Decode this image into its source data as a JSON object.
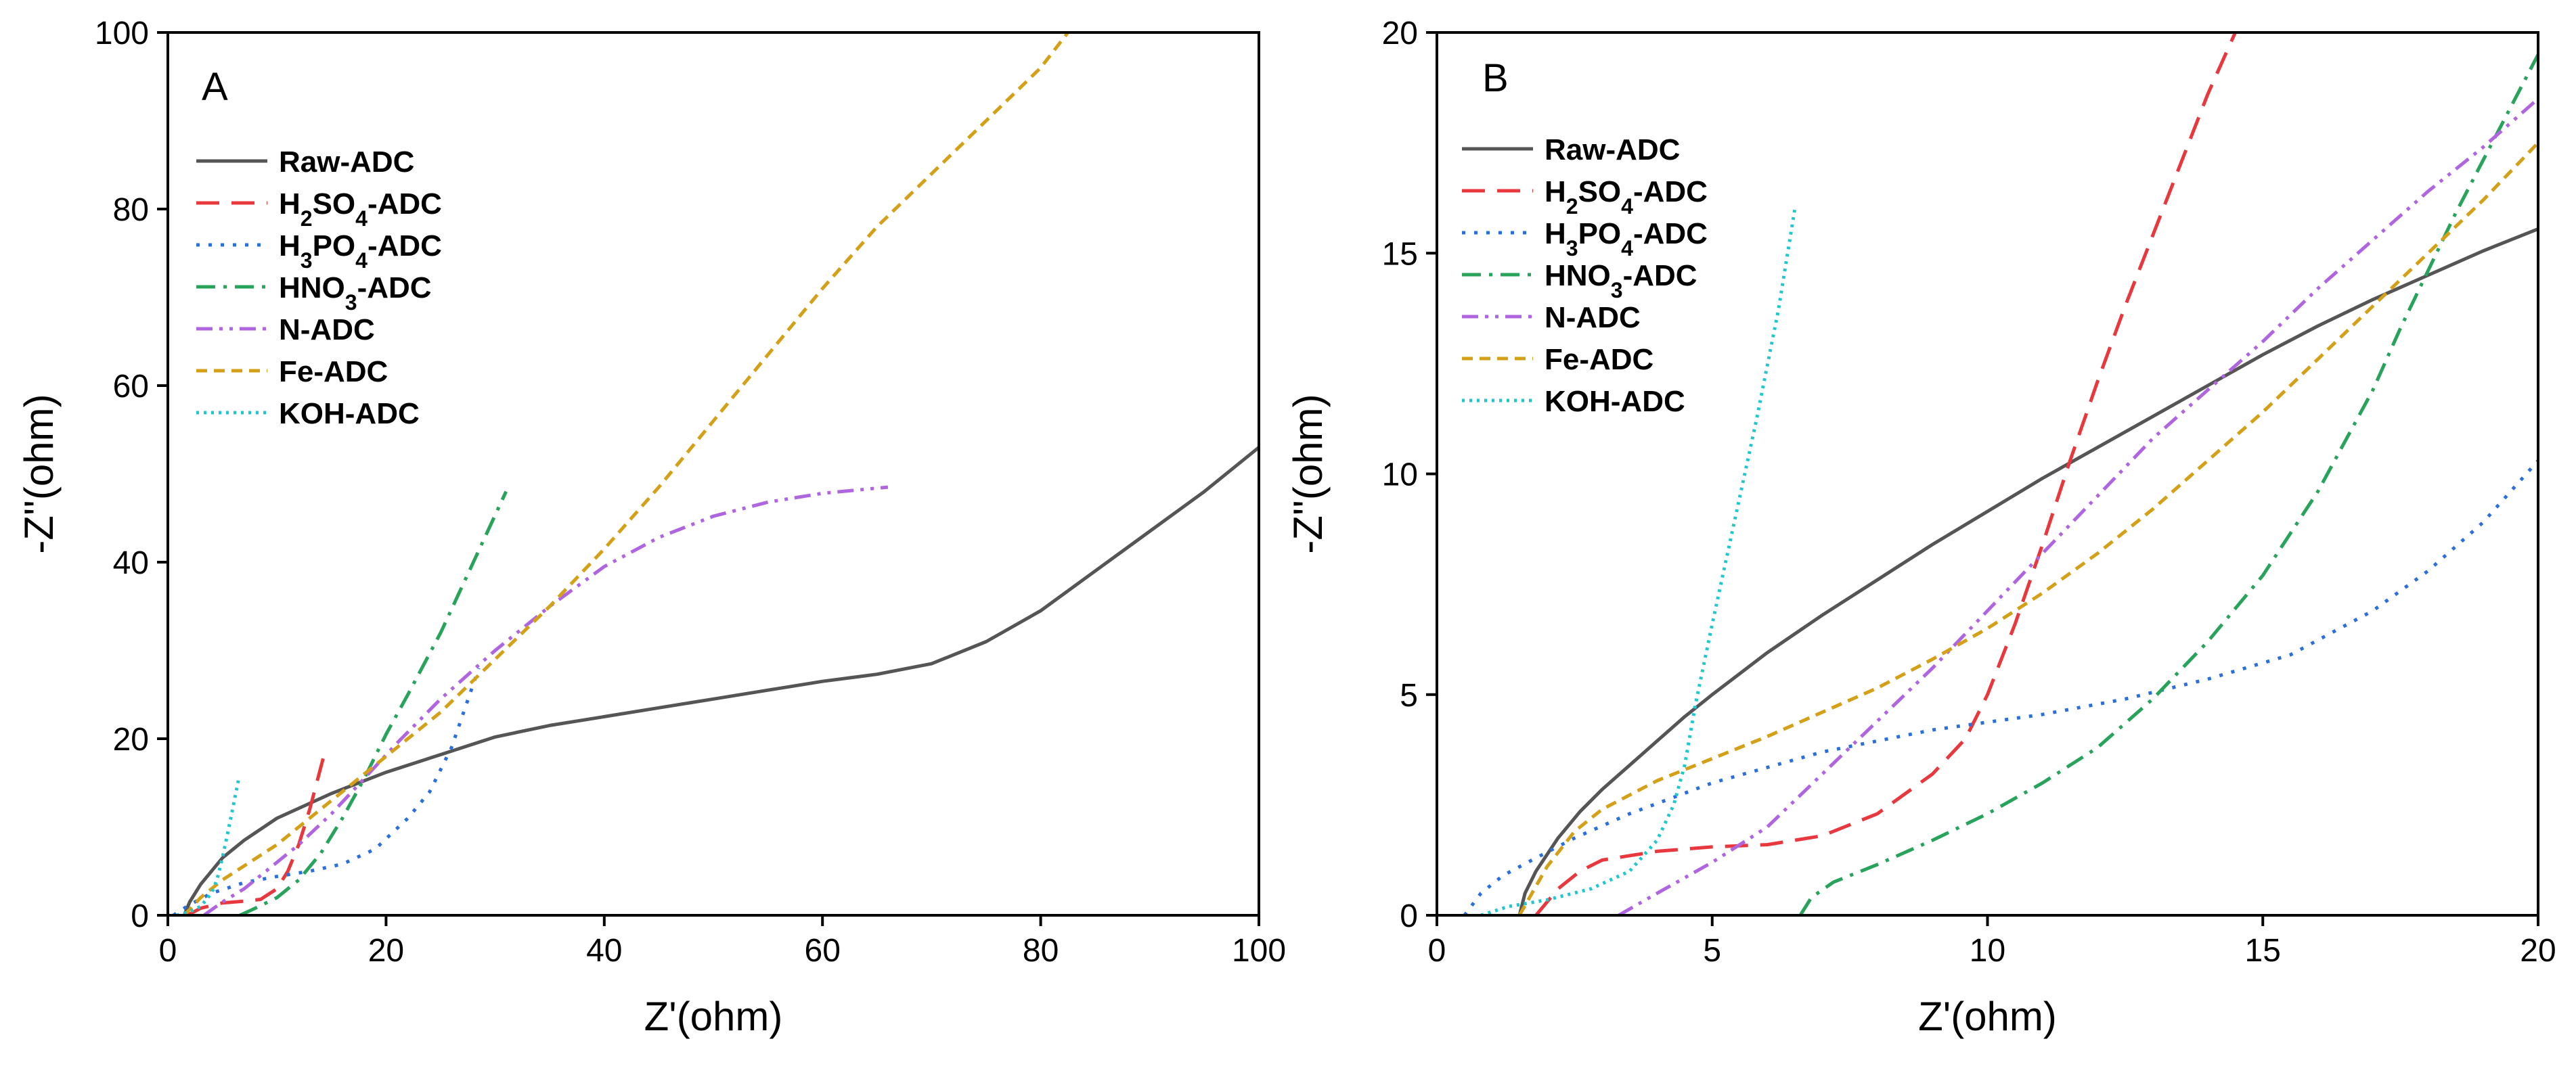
{
  "chart_data": [
    {
      "panel": "A",
      "type": "line",
      "xlabel": "Z'(ohm)",
      "ylabel": "-Z''(ohm)",
      "xlim": [
        0,
        100
      ],
      "ylim": [
        0,
        100
      ],
      "xticks": [
        0,
        20,
        40,
        60,
        80,
        100
      ],
      "yticks": [
        0,
        20,
        40,
        60,
        80,
        100
      ],
      "legend_position": "top-left",
      "series": [
        {
          "name": "Raw-ADC",
          "color": "#555555",
          "dash": "solid",
          "x": [
            1.5,
            2,
            3,
            5,
            7,
            10,
            15,
            20,
            25,
            30,
            35,
            40,
            45,
            50,
            55,
            60,
            65,
            70,
            75,
            80,
            85,
            90,
            95,
            100
          ],
          "y": [
            0,
            1.5,
            3.5,
            6.5,
            8.5,
            11,
            13.8,
            16.2,
            18.2,
            20.2,
            21.5,
            22.5,
            23.5,
            24.5,
            25.5,
            26.5,
            27.3,
            28.5,
            31,
            34.5,
            39,
            43.5,
            48,
            53
          ]
        },
        {
          "name": "H2SO4-ADC",
          "color": "#e8383d",
          "dash": "long-dash",
          "x": [
            1.8,
            3,
            5,
            7,
            8.5,
            10,
            11,
            12,
            13,
            14.5
          ],
          "y": [
            0,
            0.8,
            1.4,
            1.6,
            1.8,
            3,
            5,
            8,
            12,
            19
          ]
        },
        {
          "name": "H3PO4-ADC",
          "color": "#2a6fdb",
          "dash": "dot",
          "x": [
            0.5,
            2,
            4,
            7,
            10,
            13,
            16,
            19,
            22,
            24,
            26,
            28.5
          ],
          "y": [
            0,
            1.2,
            2.5,
            3.7,
            4.4,
            5,
            5.8,
            7.5,
            11,
            14,
            19,
            28
          ]
        },
        {
          "name": "HNO3-ADC",
          "color": "#27a35b",
          "dash": "dash-dot",
          "x": [
            6.6,
            8,
            10,
            12,
            14,
            16,
            18,
            20,
            22,
            25,
            28,
            31
          ],
          "y": [
            0,
            0.8,
            2,
            4,
            7,
            11,
            15.5,
            20.5,
            25,
            32,
            40,
            48
          ]
        },
        {
          "name": "N-ADC",
          "color": "#b065e0",
          "dash": "dash-dot-dot",
          "x": [
            3.3,
            5,
            7,
            10,
            12,
            15,
            18,
            21,
            25,
            30,
            35,
            40,
            45,
            50,
            55,
            60,
            66
          ],
          "y": [
            0,
            1.5,
            3,
            6,
            8,
            11.5,
            15.5,
            19.5,
            24.5,
            30,
            35,
            39.5,
            42.8,
            45.2,
            46.8,
            47.8,
            48.5
          ]
        },
        {
          "name": "Fe-ADC",
          "color": "#d4a017",
          "dash": "short-dash",
          "x": [
            1.5,
            3,
            5,
            10,
            15,
            20,
            25,
            30,
            35,
            40,
            45,
            50,
            55,
            60,
            65,
            70,
            75,
            80,
            82.5
          ],
          "y": [
            0,
            2,
            4,
            8,
            13,
            18,
            23,
            29,
            35,
            41.5,
            48.5,
            56,
            63.5,
            71,
            78,
            84,
            90,
            96,
            100
          ]
        },
        {
          "name": "KOH-ADC",
          "color": "#1fc7cf",
          "dash": "fine-dot",
          "x": [
            0.8,
            2,
            3,
            4,
            4.5,
            5,
            5.6,
            6.5
          ],
          "y": [
            0,
            0.4,
            1,
            2.5,
            4,
            6.5,
            10,
            15.5
          ]
        }
      ]
    },
    {
      "panel": "B",
      "type": "line",
      "xlabel": "Z'(ohm)",
      "ylabel": "-Z''(ohm)",
      "xlim": [
        0,
        20
      ],
      "ylim": [
        0,
        20
      ],
      "xticks": [
        0,
        5,
        10,
        15,
        20
      ],
      "yticks": [
        0,
        5,
        10,
        15,
        20
      ],
      "legend_position": "top-left",
      "series": [
        {
          "name": "Raw-ADC",
          "color": "#555555",
          "dash": "solid",
          "x": [
            1.5,
            1.6,
            1.8,
            2.2,
            2.6,
            3,
            3.5,
            4,
            4.5,
            5,
            6,
            7,
            8,
            9,
            10,
            11,
            12,
            13,
            14,
            15,
            16,
            17,
            18,
            19,
            20
          ],
          "y": [
            0,
            0.5,
            1,
            1.75,
            2.35,
            2.85,
            3.4,
            3.95,
            4.5,
            5,
            5.95,
            6.8,
            7.6,
            8.4,
            9.15,
            9.9,
            10.6,
            11.3,
            12,
            12.7,
            13.35,
            13.95,
            14.5,
            15.05,
            15.55
          ]
        },
        {
          "name": "H2SO4-ADC",
          "color": "#e8383d",
          "dash": "long-dash",
          "x": [
            1.8,
            2.2,
            2.6,
            3,
            4,
            5,
            6,
            7,
            8,
            9,
            9.6,
            10,
            10.5,
            11,
            11.5,
            12,
            12.5,
            13,
            13.5,
            14,
            14.5
          ],
          "y": [
            0,
            0.6,
            1,
            1.25,
            1.45,
            1.55,
            1.6,
            1.8,
            2.3,
            3.2,
            4,
            5,
            6.6,
            8.4,
            10.3,
            12.1,
            13.8,
            15.4,
            17,
            18.6,
            20
          ]
        },
        {
          "name": "H3PO4-ADC",
          "color": "#2a6fdb",
          "dash": "dot",
          "x": [
            0.5,
            0.8,
            1.2,
            1.8,
            2.5,
            3.5,
            5,
            7,
            9,
            11,
            12.5,
            14,
            15.5,
            17,
            18,
            19,
            20
          ],
          "y": [
            0,
            0.5,
            0.9,
            1.3,
            1.75,
            2.3,
            3,
            3.7,
            4.2,
            4.55,
            4.9,
            5.35,
            5.9,
            6.9,
            7.8,
            8.9,
            10.3
          ]
        },
        {
          "name": "HNO3-ADC",
          "color": "#27a35b",
          "dash": "dash-dot",
          "x": [
            6.6,
            6.8,
            7.2,
            8,
            9,
            10,
            11,
            12,
            13,
            14,
            15,
            16,
            17,
            17.5,
            18,
            18.5,
            19,
            19.5,
            20
          ],
          "y": [
            0,
            0.4,
            0.75,
            1.15,
            1.7,
            2.3,
            3,
            3.8,
            4.9,
            6.2,
            7.7,
            9.6,
            11.9,
            13.3,
            14.6,
            15.9,
            17.1,
            18.3,
            19.5
          ]
        },
        {
          "name": "N-ADC",
          "color": "#b065e0",
          "dash": "dash-dot-dot",
          "x": [
            3.3,
            4,
            5,
            6,
            7,
            8,
            9,
            10,
            11,
            12,
            13,
            14,
            15,
            16,
            17,
            18,
            19,
            20
          ],
          "y": [
            0,
            0.5,
            1.2,
            2,
            3.2,
            4.4,
            5.6,
            6.9,
            8.2,
            9.5,
            10.8,
            11.9,
            13,
            14.2,
            15.3,
            16.4,
            17.4,
            18.5
          ]
        },
        {
          "name": "Fe-ADC",
          "color": "#d4a017",
          "dash": "short-dash",
          "x": [
            1.5,
            2,
            2.5,
            3,
            4,
            5,
            6,
            7,
            8,
            9,
            10,
            11,
            12,
            13,
            14,
            15,
            16,
            17,
            18,
            19,
            20
          ],
          "y": [
            0,
            1.1,
            1.9,
            2.4,
            3.05,
            3.55,
            4.05,
            4.6,
            5.15,
            5.8,
            6.5,
            7.3,
            8.2,
            9.2,
            10.3,
            11.4,
            12.6,
            13.8,
            15,
            16.2,
            17.5
          ]
        },
        {
          "name": "KOH-ADC",
          "color": "#1fc7cf",
          "dash": "fine-dot",
          "x": [
            0.8,
            1.3,
            2,
            2.8,
            3.5,
            4,
            4.3,
            4.5,
            4.7,
            5,
            5.4,
            5.8,
            6.2,
            6.5
          ],
          "y": [
            0,
            0.2,
            0.35,
            0.6,
            1,
            1.7,
            2.5,
            3.4,
            4.8,
            6.6,
            8.9,
            11.2,
            13.7,
            16
          ]
        }
      ]
    }
  ]
}
